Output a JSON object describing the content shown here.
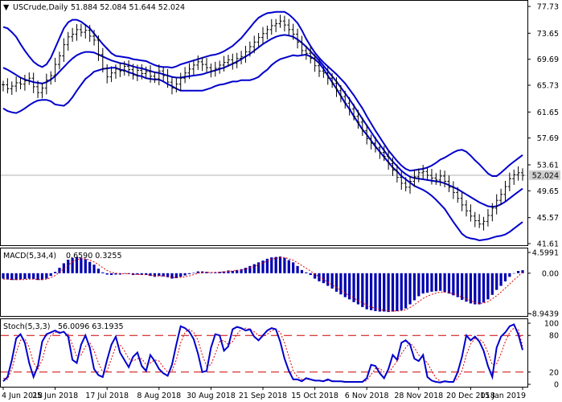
{
  "chart_data": [
    {
      "type": "line",
      "panel": "price",
      "title": "USCrude,Daily",
      "ohlc_text": "51.884 52.084 51.644 52.024",
      "last_price": "52.024",
      "y_ticks": [
        "77.73",
        "73.65",
        "69.69",
        "65.73",
        "61.65",
        "57.69",
        "53.61",
        "49.65",
        "45.57",
        "41.61"
      ],
      "ylim": [
        41.61,
        77.73
      ],
      "x_labels": [
        "4 Jun 2018",
        "25 Jun 2018",
        "17 Jul 2018",
        "8 Aug 2018",
        "30 Aug 2018",
        "21 Sep 2018",
        "15 Oct 2018",
        "6 Nov 2018",
        "28 Nov 2018",
        "20 Dec 2018",
        "15 Jan 2019"
      ],
      "close": [
        65.8,
        65.2,
        65.6,
        66.1,
        65.9,
        66.4,
        66.8,
        65.5,
        64.6,
        65.3,
        66.5,
        67.2,
        68.9,
        70.2,
        71.9,
        73.1,
        73.5,
        74.2,
        73.8,
        74.1,
        73.2,
        72.6,
        70.4,
        68.3,
        67.0,
        67.6,
        68.2,
        67.9,
        68.6,
        68.1,
        67.3,
        68.0,
        67.5,
        67.8,
        67.1,
        66.7,
        67.9,
        67.2,
        66.2,
        65.3,
        65.9,
        66.8,
        67.6,
        68.2,
        68.8,
        69.3,
        68.9,
        68.4,
        67.9,
        68.3,
        68.8,
        69.2,
        69.6,
        69.1,
        69.8,
        70.1,
        70.8,
        71.6,
        72.3,
        73.0,
        73.6,
        74.2,
        74.8,
        75.1,
        75.5,
        74.9,
        74.2,
        73.5,
        72.3,
        71.0,
        70.6,
        69.8,
        68.7,
        67.9,
        67.6,
        66.8,
        66.0,
        64.9,
        64.0,
        63.0,
        62.1,
        61.0,
        60.1,
        58.8,
        57.6,
        56.9,
        56.2,
        55.5,
        54.9,
        53.8,
        52.8,
        51.7,
        50.8,
        50.2,
        51.1,
        51.8,
        52.4,
        52.6,
        52.0,
        51.6,
        51.3,
        51.9,
        51.1,
        50.2,
        49.4,
        48.5,
        47.5,
        46.6,
        45.8,
        45.1,
        44.6,
        45.0,
        45.9,
        47.0,
        48.2,
        49.1,
        50.3,
        51.5,
        52.1,
        52.4,
        52.0
      ],
      "bollinger": {
        "upper": [
          74.6,
          74.4,
          73.8,
          73.1,
          72.0,
          71.0,
          70.1,
          69.3,
          68.8,
          68.5,
          68.9,
          69.9,
          71.4,
          72.9,
          74.4,
          75.3,
          75.7,
          75.7,
          75.4,
          74.9,
          74.4,
          73.6,
          72.8,
          72.0,
          71.3,
          70.6,
          70.2,
          70.1,
          70.0,
          69.9,
          69.7,
          69.6,
          69.5,
          69.4,
          69.1,
          68.8,
          68.6,
          68.5,
          68.5,
          68.4,
          68.6,
          68.9,
          69.1,
          69.3,
          69.5,
          69.7,
          69.9,
          70.1,
          70.3,
          70.4,
          70.6,
          70.9,
          71.3,
          71.7,
          72.3,
          72.9,
          73.7,
          74.5,
          75.3,
          76.0,
          76.4,
          76.7,
          76.8,
          76.9,
          76.9,
          76.9,
          76.5,
          75.9,
          75.2,
          74.1,
          72.8,
          71.7,
          70.7,
          69.9,
          69.2,
          68.6,
          68.0,
          67.4,
          66.7,
          66.0,
          65.1,
          64.2,
          63.2,
          62.2,
          61.0,
          59.9,
          58.8,
          57.8,
          56.8,
          55.8,
          55.0,
          54.2,
          53.5,
          53.0,
          52.7,
          52.8,
          52.9,
          53.0,
          53.2,
          53.5,
          53.9,
          54.4,
          54.7,
          55.1,
          55.5,
          55.8,
          55.9,
          55.6,
          55.0,
          54.3,
          53.7,
          53.0,
          52.3,
          51.9,
          51.9,
          52.4,
          53.0,
          53.6,
          54.1,
          54.6,
          55.1
        ],
        "middle": [
          68.4,
          68.1,
          67.7,
          67.3,
          66.9,
          66.6,
          66.4,
          66.2,
          66.1,
          66.0,
          66.2,
          66.6,
          67.1,
          67.8,
          68.5,
          69.2,
          69.8,
          70.3,
          70.6,
          70.8,
          70.8,
          70.7,
          70.4,
          70.1,
          69.8,
          69.5,
          69.3,
          69.1,
          69.0,
          68.8,
          68.6,
          68.4,
          68.3,
          68.1,
          67.9,
          67.7,
          67.6,
          67.4,
          67.2,
          67.0,
          66.9,
          66.9,
          67.0,
          67.1,
          67.2,
          67.3,
          67.4,
          67.6,
          67.8,
          68.0,
          68.2,
          68.4,
          68.7,
          69.0,
          69.3,
          69.7,
          70.1,
          70.5,
          71.0,
          71.5,
          72.0,
          72.4,
          72.8,
          73.1,
          73.3,
          73.4,
          73.3,
          73.1,
          72.7,
          72.2,
          71.6,
          70.9,
          70.2,
          69.5,
          68.7,
          67.9,
          67.1,
          66.3,
          65.4,
          64.5,
          63.6,
          62.6,
          61.6,
          60.6,
          59.6,
          58.6,
          57.6,
          56.7,
          55.8,
          54.9,
          54.1,
          53.4,
          52.7,
          52.2,
          51.8,
          51.6,
          51.5,
          51.4,
          51.3,
          51.2,
          51.1,
          51.0,
          50.8,
          50.5,
          50.2,
          49.9,
          49.5,
          49.1,
          48.7,
          48.3,
          47.9,
          47.6,
          47.3,
          47.2,
          47.3,
          47.6,
          48.0,
          48.5,
          49.0,
          49.5,
          50.0
        ],
        "lower": [
          62.2,
          61.8,
          61.6,
          61.5,
          61.8,
          62.2,
          62.7,
          63.1,
          63.4,
          63.5,
          63.5,
          63.3,
          62.8,
          62.7,
          62.6,
          63.1,
          63.9,
          64.9,
          65.8,
          66.7,
          67.2,
          67.8,
          68.0,
          68.2,
          68.3,
          68.4,
          68.4,
          68.1,
          68.0,
          67.7,
          67.5,
          67.2,
          67.1,
          66.8,
          66.7,
          66.6,
          66.6,
          66.3,
          65.9,
          65.6,
          65.2,
          64.9,
          64.9,
          64.9,
          64.9,
          64.9,
          64.9,
          65.1,
          65.3,
          65.6,
          65.8,
          65.9,
          66.1,
          66.3,
          66.3,
          66.5,
          66.5,
          66.5,
          66.7,
          67.0,
          67.6,
          68.1,
          68.8,
          69.3,
          69.7,
          69.9,
          70.1,
          70.3,
          70.2,
          70.3,
          70.4,
          70.1,
          69.7,
          69.1,
          68.2,
          67.2,
          66.2,
          65.2,
          64.1,
          63.0,
          62.1,
          61.0,
          60.0,
          59.0,
          58.2,
          57.3,
          56.4,
          55.6,
          54.8,
          54.0,
          53.2,
          52.6,
          51.9,
          51.4,
          50.9,
          50.4,
          50.1,
          49.8,
          49.4,
          48.9,
          48.3,
          47.6,
          46.9,
          45.9,
          44.9,
          44.0,
          43.1,
          42.6,
          42.4,
          42.3,
          42.1,
          42.2,
          42.3,
          42.5,
          42.7,
          42.8,
          43.0,
          43.4,
          43.9,
          44.4,
          44.9
        ]
      }
    },
    {
      "type": "bar",
      "panel": "macd",
      "title": "MACD(5,34,4)",
      "values_text": "0.6590 0.3255",
      "y_ticks": [
        "4.5991",
        "0.00",
        "-8.9439"
      ],
      "ylim": [
        -8.9439,
        4.5991
      ],
      "histogram": [
        -1.2,
        -1.4,
        -1.5,
        -1.5,
        -1.4,
        -1.3,
        -1.2,
        -1.3,
        -1.5,
        -1.5,
        -1.2,
        -0.6,
        0.3,
        1.2,
        2.2,
        3.0,
        3.4,
        3.6,
        3.4,
        3.1,
        2.5,
        1.9,
        1.0,
        0.2,
        -0.3,
        -0.4,
        -0.3,
        -0.3,
        -0.1,
        -0.2,
        -0.4,
        -0.3,
        -0.4,
        -0.4,
        -0.6,
        -0.8,
        -0.6,
        -0.7,
        -0.9,
        -1.2,
        -1.1,
        -0.8,
        -0.5,
        -0.2,
        0.1,
        0.4,
        0.4,
        0.3,
        0.1,
        0.2,
        0.3,
        0.4,
        0.6,
        0.5,
        0.7,
        0.9,
        1.2,
        1.6,
        2.0,
        2.4,
        2.8,
        3.2,
        3.5,
        3.6,
        3.7,
        3.4,
        2.9,
        2.4,
        1.6,
        0.7,
        0.2,
        -0.4,
        -1.2,
        -1.8,
        -2.2,
        -2.8,
        -3.4,
        -4.1,
        -4.7,
        -5.3,
        -5.8,
        -6.4,
        -6.9,
        -7.5,
        -8.0,
        -8.2,
        -8.4,
        -8.5,
        -8.5,
        -8.6,
        -8.5,
        -8.4,
        -8.2,
        -7.8,
        -6.9,
        -6.0,
        -5.1,
        -4.5,
        -4.3,
        -4.1,
        -4.0,
        -3.9,
        -4.2,
        -4.5,
        -4.9,
        -5.3,
        -5.9,
        -6.3,
        -6.7,
        -6.9,
        -6.9,
        -6.5,
        -5.8,
        -4.8,
        -3.7,
        -2.8,
        -1.8,
        -0.8,
        0.0,
        0.5,
        0.66
      ],
      "signal": [
        -1.3,
        -1.3,
        -1.4,
        -1.4,
        -1.4,
        -1.4,
        -1.3,
        -1.3,
        -1.4,
        -1.4,
        -1.3,
        -1.0,
        -0.5,
        0.2,
        1.0,
        1.8,
        2.5,
        3.0,
        3.2,
        3.2,
        2.9,
        2.5,
        1.9,
        1.2,
        0.6,
        0.2,
        0.0,
        -0.1,
        -0.1,
        -0.1,
        -0.2,
        -0.3,
        -0.3,
        -0.3,
        -0.4,
        -0.6,
        -0.6,
        -0.6,
        -0.7,
        -0.9,
        -1.0,
        -0.9,
        -0.8,
        -0.6,
        -0.3,
        0.0,
        0.2,
        0.2,
        0.2,
        0.2,
        0.2,
        0.3,
        0.4,
        0.5,
        0.6,
        0.7,
        0.9,
        1.2,
        1.5,
        1.9,
        2.3,
        2.7,
        3.1,
        3.3,
        3.5,
        3.5,
        3.2,
        2.9,
        2.3,
        1.7,
        1.1,
        0.5,
        -0.2,
        -0.8,
        -1.4,
        -2.0,
        -2.6,
        -3.2,
        -3.8,
        -4.4,
        -5.0,
        -5.5,
        -6.1,
        -6.6,
        -7.1,
        -7.5,
        -7.8,
        -8.1,
        -8.2,
        -8.3,
        -8.4,
        -8.4,
        -8.3,
        -8.1,
        -7.6,
        -7.0,
        -6.3,
        -5.6,
        -5.1,
        -4.7,
        -4.4,
        -4.2,
        -4.2,
        -4.3,
        -4.6,
        -4.9,
        -5.3,
        -5.7,
        -6.1,
        -6.5,
        -6.7,
        -6.6,
        -6.3,
        -5.7,
        -5.0,
        -4.2,
        -3.3,
        -2.4,
        -1.5,
        -0.7,
        0.33
      ]
    },
    {
      "type": "line",
      "panel": "stochastic",
      "title": "Stoch(5,3,3)",
      "values_text": "56.0096 63.1935",
      "y_ticks": [
        "100",
        "80",
        "20",
        "0"
      ],
      "ylim": [
        0,
        100
      ],
      "levels": [
        80,
        20
      ],
      "k": [
        5,
        12,
        40,
        75,
        82,
        68,
        35,
        12,
        30,
        70,
        82,
        85,
        88,
        84,
        86,
        78,
        40,
        35,
        65,
        80,
        60,
        25,
        15,
        12,
        40,
        65,
        78,
        52,
        40,
        28,
        45,
        52,
        30,
        22,
        48,
        38,
        25,
        18,
        14,
        32,
        65,
        95,
        92,
        86,
        74,
        50,
        20,
        22,
        60,
        82,
        80,
        55,
        62,
        90,
        94,
        92,
        88,
        90,
        78,
        72,
        80,
        88,
        92,
        90,
        70,
        42,
        22,
        8,
        8,
        5,
        10,
        8,
        6,
        6,
        5,
        8,
        5,
        5,
        5,
        4,
        4,
        4,
        4,
        4,
        10,
        32,
        30,
        18,
        10,
        25,
        48,
        40,
        68,
        72,
        65,
        42,
        38,
        48,
        12,
        6,
        4,
        3,
        5,
        4,
        4,
        20,
        45,
        80,
        72,
        78,
        70,
        55,
        30,
        12,
        60,
        78,
        85,
        95,
        98,
        82,
        56
      ],
      "d": [
        10,
        8,
        25,
        52,
        72,
        75,
        60,
        35,
        25,
        40,
        65,
        80,
        85,
        86,
        85,
        82,
        65,
        45,
        48,
        62,
        68,
        55,
        35,
        20,
        22,
        42,
        62,
        65,
        55,
        42,
        38,
        42,
        42,
        32,
        35,
        40,
        38,
        28,
        20,
        22,
        40,
        68,
        85,
        90,
        85,
        72,
        48,
        30,
        32,
        50,
        70,
        72,
        65,
        70,
        82,
        90,
        92,
        90,
        86,
        80,
        78,
        82,
        88,
        90,
        85,
        68,
        45,
        22,
        12,
        8,
        8,
        8,
        7,
        6,
        6,
        6,
        6,
        5,
        5,
        5,
        4,
        4,
        4,
        4,
        6,
        16,
        26,
        26,
        20,
        18,
        28,
        38,
        50,
        60,
        68,
        60,
        48,
        42,
        35,
        22,
        10,
        5,
        4,
        4,
        4,
        10,
        22,
        48,
        66,
        75,
        74,
        68,
        52,
        32,
        34,
        50,
        70,
        85,
        92,
        90,
        63
      ]
    }
  ]
}
